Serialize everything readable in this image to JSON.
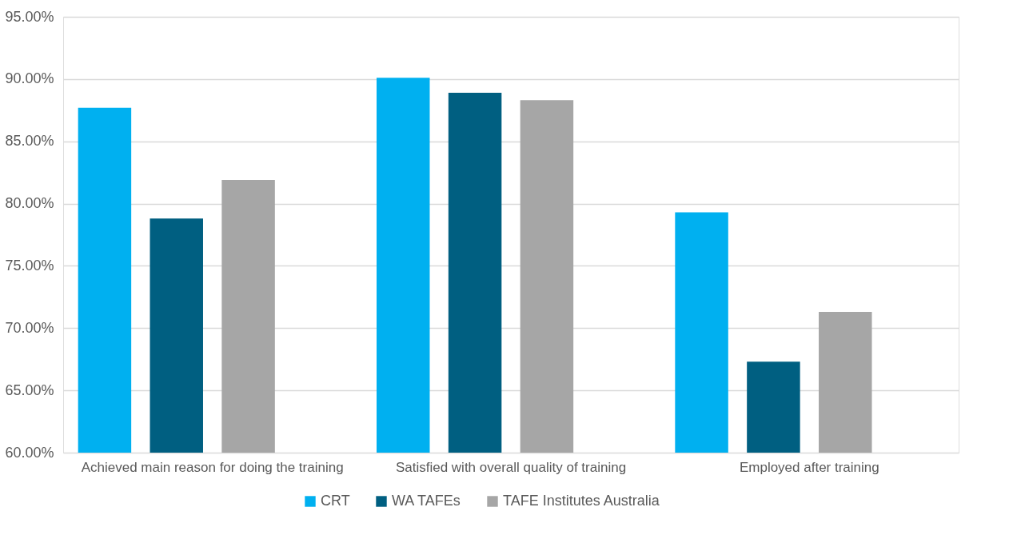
{
  "chart_data": {
    "type": "bar",
    "categories": [
      "Achieved main reason for doing the training",
      "Satisfied with overall quality of training",
      "Employed after training"
    ],
    "series": [
      {
        "name": "CRT",
        "color": "#00b0f0",
        "values": [
          87.7,
          90.1,
          79.3
        ]
      },
      {
        "name": "WA TAFEs",
        "color": "#005f81",
        "values": [
          78.8,
          88.9,
          67.3
        ]
      },
      {
        "name": "TAFE Institutes Australia",
        "color": "#a6a6a6",
        "values": [
          81.9,
          88.3,
          71.3
        ]
      }
    ],
    "ylim": [
      60,
      95
    ],
    "yticks": [
      {
        "value": 60,
        "label": "60.00%"
      },
      {
        "value": 65,
        "label": "65.00%"
      },
      {
        "value": 70,
        "label": "70.00%"
      },
      {
        "value": 75,
        "label": "75.00%"
      },
      {
        "value": 80,
        "label": "80.00%"
      },
      {
        "value": 85,
        "label": "85.00%"
      },
      {
        "value": 90,
        "label": "90.00%"
      },
      {
        "value": 95,
        "label": "95.00%"
      }
    ],
    "grid": "y",
    "legend": "bottom"
  }
}
